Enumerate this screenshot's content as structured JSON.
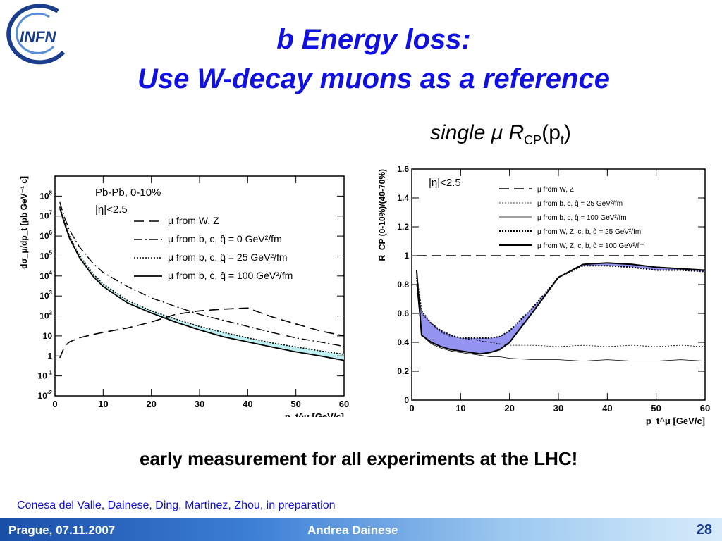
{
  "slide": {
    "title_line1": "b Energy loss:",
    "title_line2": "Use W-decay muons as a reference",
    "subtitle_prefix": "single",
    "subtitle_mu": "μ",
    "subtitle_r": "R",
    "subtitle_sub": "CP",
    "subtitle_arg_open": "(p",
    "subtitle_arg_sub": "t",
    "subtitle_arg_close": ")",
    "logo_text": "INFN",
    "conclusion": "early measurement for all experiments at the LHC!",
    "credit": "Conesa del Valle, Dainese, Ding, Martinez, Zhou, in preparation",
    "footer_left": "Prague, 07.11.2007",
    "footer_center": "Andrea Dainese",
    "footer_right": "28",
    "colors": {
      "title": "#1010e0",
      "band_left": "#b8eef0",
      "band_right": "#8888ee",
      "footer_start": "#1a4fa8"
    }
  },
  "chart_data": [
    {
      "type": "line",
      "yscale": "log",
      "ylabel": "dσ_μ/dp_t [pb GeV⁻¹ c]",
      "xlabel": "p_t^μ [GeV/c]",
      "xlim": [
        0,
        60
      ],
      "ylim": [
        0.01,
        1000000000
      ],
      "xticks": [
        0,
        10,
        20,
        30,
        40,
        50,
        60
      ],
      "yticks": [
        "10^-2",
        "10^-1",
        "1",
        "10",
        "10^2",
        "10^3",
        "10^4",
        "10^5",
        "10^6",
        "10^7",
        "10^8"
      ],
      "annotations": [
        "Pb-Pb, 0-10%",
        "|η|<2.5"
      ],
      "legend_position": "top-right",
      "x": [
        1,
        2,
        3,
        5,
        8,
        10,
        15,
        20,
        25,
        30,
        35,
        40,
        45,
        50,
        55,
        60
      ],
      "series": [
        {
          "name": "μ from W, Z",
          "style": "long-dash",
          "values": [
            0.8,
            3,
            5,
            8,
            12,
            15,
            25,
            50,
            120,
            180,
            220,
            250,
            90,
            40,
            18,
            10
          ]
        },
        {
          "name": "μ from b, c, q̂ = 0 GeV²/fm",
          "style": "dash-dot",
          "values": [
            50000000,
            8000000,
            2000000,
            300000,
            40000,
            15000,
            3000,
            800,
            300,
            120,
            60,
            30,
            15,
            8,
            5,
            3
          ]
        },
        {
          "name": "μ from b, c, q̂ = 25 GeV²/fm",
          "style": "dotted",
          "values": [
            30000000,
            5000000,
            1000000,
            120000,
            12000,
            4000,
            600,
            180,
            70,
            30,
            15,
            8,
            4.5,
            2.8,
            1.8,
            1.2
          ]
        },
        {
          "name": "μ from b, c, q̂ = 100 GeV²/fm",
          "style": "solid",
          "values": [
            25000000,
            4000000,
            800000,
            90000,
            9000,
            3000,
            450,
            140,
            50,
            20,
            9,
            5,
            2.8,
            1.6,
            1,
            0.6
          ]
        }
      ]
    },
    {
      "type": "line",
      "ylabel": "R_CP (0-10%)/(40-70%)",
      "xlabel": "p_t^μ [GeV/c]",
      "xlim": [
        0,
        60
      ],
      "ylim": [
        0,
        1.6
      ],
      "xticks": [
        0,
        10,
        20,
        30,
        40,
        50,
        60
      ],
      "yticks": [
        0,
        0.2,
        0.4,
        0.6,
        0.8,
        1,
        1.2,
        1.4,
        1.6
      ],
      "annotations": [
        "|η|<2.5"
      ],
      "legend_position": "top-right",
      "x": [
        1,
        2,
        4,
        6,
        8,
        10,
        12,
        14,
        16,
        18,
        20,
        25,
        30,
        35,
        40,
        45,
        50,
        55,
        60
      ],
      "series": [
        {
          "name": "μ from W, Z",
          "style": "long-dash",
          "values": [
            1,
            1,
            1,
            1,
            1,
            1,
            1,
            1,
            1,
            1,
            1,
            1,
            1,
            1,
            1,
            1,
            1,
            1,
            1
          ]
        },
        {
          "name": "μ from b, c, q̂ = 25 GeV²/fm",
          "style": "thin-dotted",
          "values": [
            0.8,
            0.6,
            0.53,
            0.47,
            0.44,
            0.43,
            0.42,
            0.41,
            0.4,
            0.39,
            0.38,
            0.38,
            0.37,
            0.38,
            0.37,
            0.38,
            0.37,
            0.38,
            0.37
          ]
        },
        {
          "name": "μ from b, c, q̂ = 100 GeV²/fm",
          "style": "thin-solid",
          "values": [
            0.8,
            0.45,
            0.39,
            0.36,
            0.34,
            0.33,
            0.32,
            0.31,
            0.3,
            0.3,
            0.29,
            0.28,
            0.28,
            0.27,
            0.28,
            0.27,
            0.27,
            0.28,
            0.27
          ]
        },
        {
          "name": "μ from W, Z, c, b, q̂ = 25 GeV²/fm",
          "style": "thick-dotted",
          "values": [
            0.85,
            0.62,
            0.53,
            0.48,
            0.45,
            0.43,
            0.43,
            0.43,
            0.43,
            0.44,
            0.48,
            0.65,
            0.85,
            0.93,
            0.93,
            0.92,
            0.9,
            0.9,
            0.89
          ]
        },
        {
          "name": "μ from W, Z, c, b, q̂ = 100 GeV²/fm",
          "style": "thick-solid",
          "values": [
            0.9,
            0.45,
            0.4,
            0.37,
            0.35,
            0.34,
            0.33,
            0.32,
            0.33,
            0.35,
            0.4,
            0.62,
            0.85,
            0.94,
            0.95,
            0.94,
            0.92,
            0.91,
            0.9
          ]
        }
      ]
    }
  ]
}
